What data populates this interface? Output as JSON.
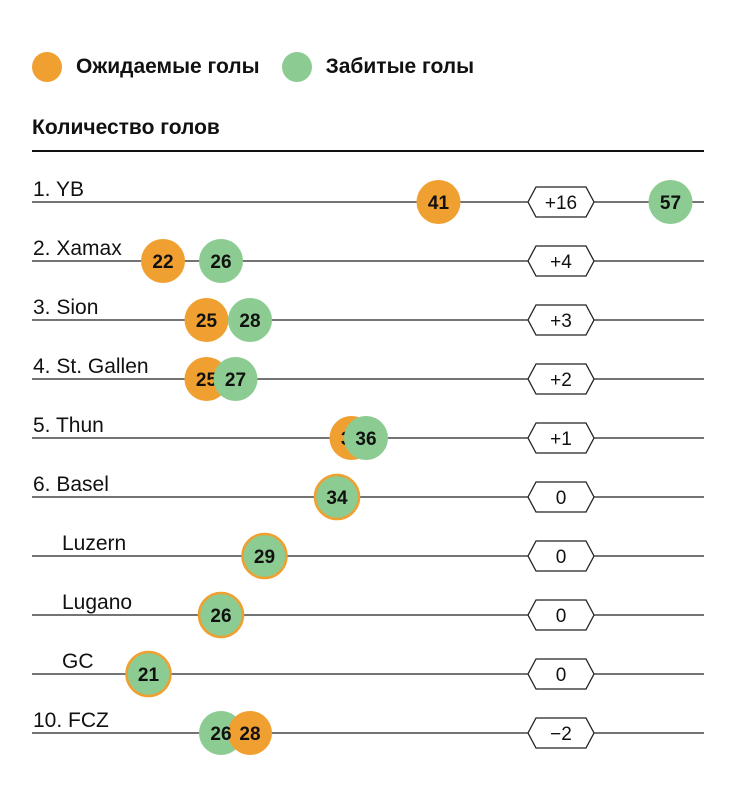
{
  "legend": {
    "expected": {
      "label": "Ожидаемые голы",
      "color": "#f0a030"
    },
    "scored": {
      "label": "Забитые голы",
      "color": "#8ccb91"
    }
  },
  "chart_data": {
    "type": "dot-plot",
    "title": "Количество голов",
    "teams": [
      {
        "label": "1. YB",
        "expected": 41,
        "scored": 57,
        "diff": "+16"
      },
      {
        "label": "2. Xamax",
        "expected": 22,
        "scored": 26,
        "diff": "+4"
      },
      {
        "label": "3. Sion",
        "expected": 25,
        "scored": 28,
        "diff": "+3"
      },
      {
        "label": "4. St. Gallen",
        "expected": 25,
        "scored": 27,
        "diff": "+2"
      },
      {
        "label": "5. Thun",
        "expected": 35,
        "scored": 36,
        "diff": "+1"
      },
      {
        "label": "6. Basel",
        "expected": 34,
        "scored": 34,
        "diff": "0"
      },
      {
        "label": "Luzern",
        "expected": 29,
        "scored": 29,
        "diff": "0"
      },
      {
        "label": "Lugano",
        "expected": 26,
        "scored": 26,
        "diff": "0"
      },
      {
        "label": "GC",
        "expected": 21,
        "scored": 21,
        "diff": "0"
      },
      {
        "label": "10. FCZ",
        "expected": 28,
        "scored": 26,
        "diff": "−2"
      }
    ]
  }
}
